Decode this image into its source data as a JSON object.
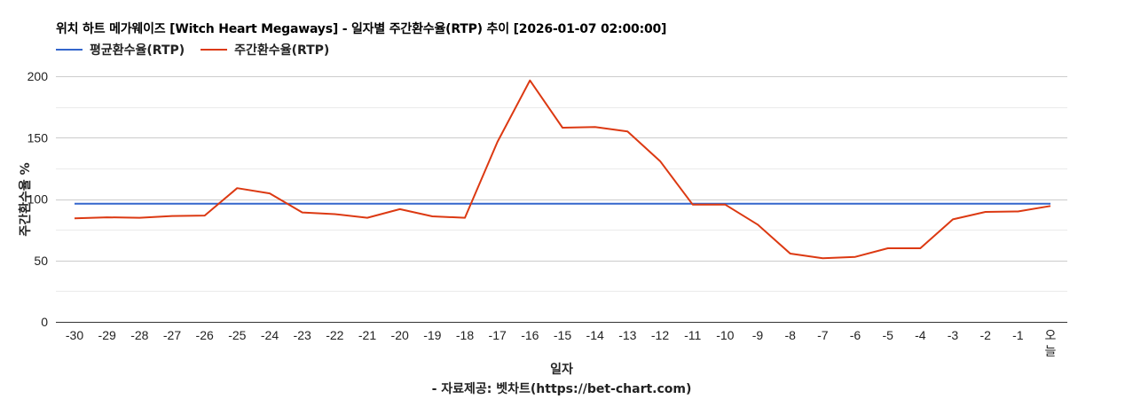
{
  "title": "위치 하트 메가웨이즈 [Witch Heart Megaways] - 일자별 주간환수율(RTP) 추이 [2026-01-07 02:00:00]",
  "legend": [
    {
      "label": "평균환수율(RTP)",
      "color": "#3366cc"
    },
    {
      "label": "주간환수율(RTP)",
      "color": "#dc3912"
    }
  ],
  "axes": {
    "y_title": "주간환수율 %",
    "x_title": "일자"
  },
  "footer": "- 자료제공: 벳차트(https://bet-chart.com)",
  "chart_data": {
    "type": "line",
    "title": "위치 하트 메가웨이즈 [Witch Heart Megaways] - 일자별 주간환수율(RTP) 추이 [2026-01-07 02:00:00]",
    "xlabel": "일자",
    "ylabel": "주간환수율 %",
    "ylim": [
      0,
      200
    ],
    "yticks": [
      0,
      50,
      100,
      150,
      200
    ],
    "minor_gridlines": [
      25,
      75,
      125,
      175
    ],
    "grid": true,
    "legend_position": "top",
    "categories": [
      "-30",
      "-29",
      "-28",
      "-27",
      "-26",
      "-25",
      "-24",
      "-23",
      "-22",
      "-21",
      "-20",
      "-19",
      "-18",
      "-17",
      "-16",
      "-15",
      "-14",
      "-13",
      "-12",
      "-11",
      "-10",
      "-9",
      "-8",
      "-7",
      "-6",
      "-5",
      "-4",
      "-3",
      "-2",
      "-1",
      "오늘"
    ],
    "series": [
      {
        "name": "평균환수율(RTP)",
        "color": "#3366cc",
        "values": [
          96.2,
          96.2,
          96.2,
          96.2,
          96.2,
          96.2,
          96.2,
          96.2,
          96.2,
          96.2,
          96.2,
          96.2,
          96.2,
          96.2,
          96.2,
          96.2,
          96.2,
          96.2,
          96.2,
          96.2,
          96.2,
          96.2,
          96.2,
          96.2,
          96.2,
          96.2,
          96.2,
          96.2,
          96.2,
          96.2,
          96.2
        ]
      },
      {
        "name": "주간환수율(RTP)",
        "color": "#dc3912",
        "values": [
          84.3,
          85.1,
          84.8,
          86.2,
          86.6,
          108.9,
          104.6,
          89.1,
          87.7,
          84.8,
          91.8,
          85.9,
          84.8,
          146.6,
          196.6,
          158.1,
          158.6,
          155.0,
          130.9,
          95.5,
          95.5,
          79.2,
          55.6,
          51.8,
          52.9,
          59.9,
          59.9,
          83.5,
          89.5,
          89.9,
          94.4
        ]
      }
    ]
  }
}
